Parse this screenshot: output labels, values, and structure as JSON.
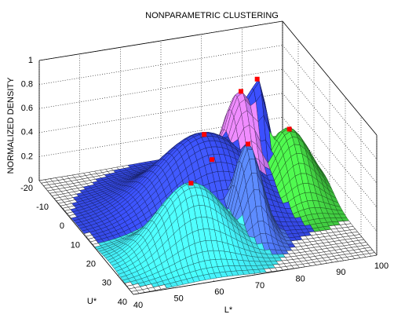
{
  "chart_data": {
    "type": "surface3d",
    "title": "NONPARAMETRIC CLUSTERING",
    "xlabel": "L*",
    "ylabel": "U*",
    "zlabel": "NORMALIZED DENSITY",
    "xlim": [
      40,
      100
    ],
    "ylim": [
      -20,
      40
    ],
    "zlim": [
      0,
      1
    ],
    "xticks": [
      40,
      50,
      60,
      70,
      80,
      90,
      100
    ],
    "yticks": [
      -20,
      -10,
      0,
      10,
      20,
      30,
      40
    ],
    "zticks": [
      0,
      0.2,
      0.4,
      0.6,
      0.8,
      1
    ],
    "grid": true,
    "peak_marker_color": "#ff0000",
    "clusters": [
      {
        "color": "#3448e0",
        "x": 71,
        "y": 5,
        "z": 0.61,
        "spread": [
          11,
          9
        ]
      },
      {
        "color": "#e6e040",
        "x": 71,
        "y": 10,
        "z": 0.48,
        "spread": [
          7,
          5
        ]
      },
      {
        "color": "#40e0e8",
        "x": 60,
        "y": 25,
        "z": 0.58,
        "spread": [
          8,
          6
        ]
      },
      {
        "color": "#c070e0",
        "x": 82,
        "y": 0,
        "z": 0.83,
        "spread": [
          4,
          6
        ]
      },
      {
        "color": "#3040d8",
        "x": 86,
        "y": 0,
        "z": 0.91,
        "spread": [
          2.5,
          4
        ]
      },
      {
        "color": "#40c840",
        "x": 92,
        "y": 5,
        "z": 0.54,
        "spread": [
          5,
          7
        ]
      },
      {
        "color": "#4a70e8",
        "x": 76,
        "y": 20,
        "z": 0.74,
        "spread": [
          3,
          5
        ]
      }
    ]
  }
}
